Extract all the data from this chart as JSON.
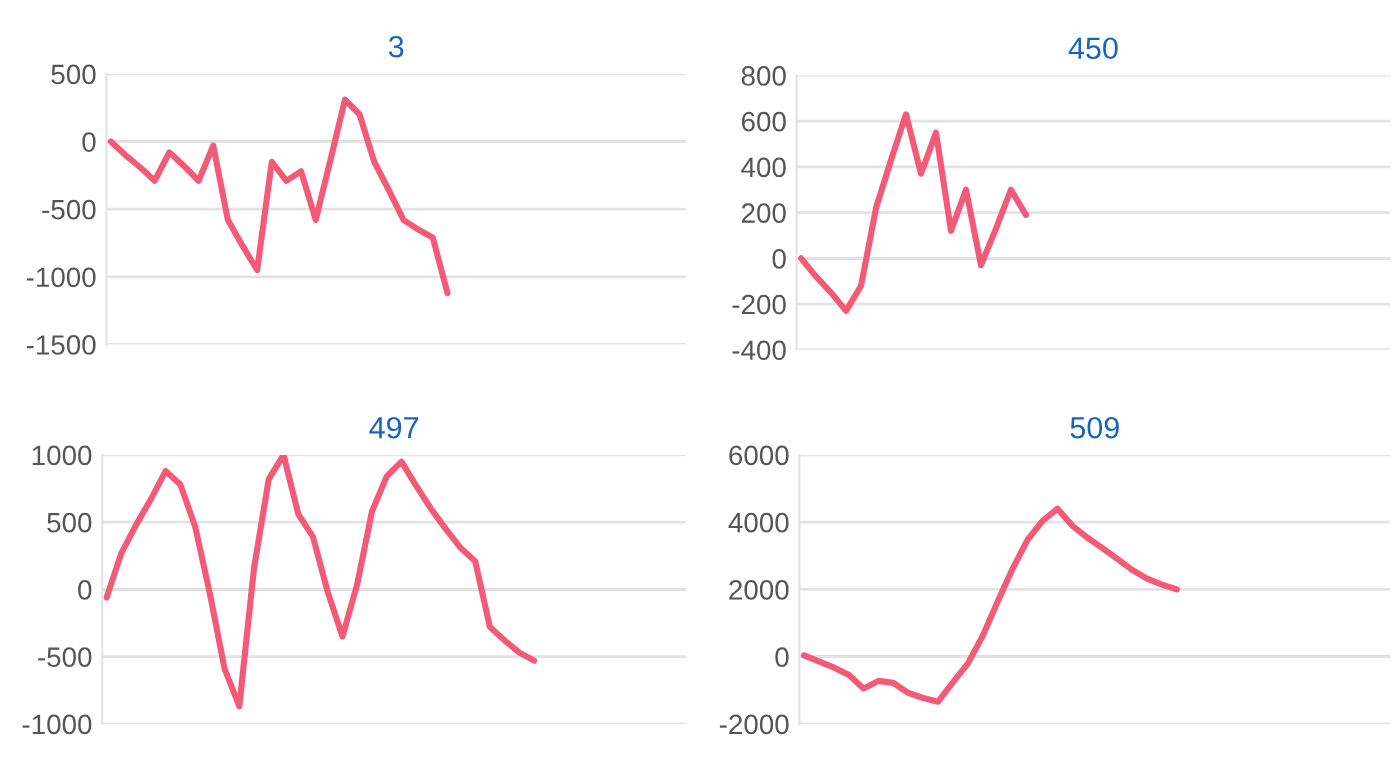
{
  "chart_data": [
    {
      "type": "line",
      "title": "3",
      "categories": [
        null,
        null,
        null,
        null,
        null,
        null,
        null,
        null,
        null,
        null,
        null,
        null,
        null,
        null,
        null,
        null,
        null,
        null,
        null,
        null,
        null,
        null,
        null,
        null,
        null,
        null,
        null,
        null,
        null,
        null,
        null,
        null,
        null,
        null,
        null,
        null,
        null,
        null,
        null,
        null
      ],
      "series": [
        {
          "color": "#f25a78",
          "values": [
            0,
            -100,
            -190,
            -290,
            -80,
            -180,
            -290,
            -30,
            -580,
            -770,
            -950,
            -150,
            -290,
            -220,
            -580,
            -140,
            310,
            200,
            -150,
            -360,
            -580,
            -650,
            -710,
            -1120,
            null,
            null,
            null,
            null,
            null,
            null,
            null,
            null,
            null,
            null,
            null,
            null,
            null,
            null,
            null,
            null
          ]
        }
      ],
      "ylim": [
        -1500,
        500
      ],
      "yticks": [
        -1500,
        -1000,
        -500,
        0,
        500
      ],
      "grid": "y",
      "tick_labels": "y",
      "marker": "none",
      "line_style": "solid"
    },
    {
      "type": "line",
      "title": "450",
      "categories": [
        null,
        null,
        null,
        null,
        null,
        null,
        null,
        null,
        null,
        null,
        null,
        null,
        null,
        null,
        null,
        null,
        null,
        null,
        null,
        null,
        null,
        null,
        null,
        null,
        null,
        null,
        null,
        null,
        null,
        null,
        null,
        null,
        null,
        null,
        null,
        null,
        null,
        null,
        null,
        null
      ],
      "series": [
        {
          "color": "#f25a78",
          "values": [
            0,
            -80,
            -150,
            -230,
            -120,
            220,
            430,
            630,
            370,
            550,
            120,
            300,
            -30,
            130,
            300,
            190,
            null,
            null,
            null,
            null,
            null,
            null,
            null,
            null,
            null,
            null,
            null,
            null,
            null,
            null,
            null,
            null,
            null,
            null,
            null,
            null,
            null,
            null,
            null,
            null
          ]
        }
      ],
      "ylim": [
        -400,
        800
      ],
      "yticks": [
        -400,
        -200,
        0,
        200,
        400,
        600,
        800
      ],
      "grid": "y",
      "tick_labels": "y",
      "marker": "none",
      "line_style": "solid"
    },
    {
      "type": "line",
      "title": "497",
      "categories": [
        null,
        null,
        null,
        null,
        null,
        null,
        null,
        null,
        null,
        null,
        null,
        null,
        null,
        null,
        null,
        null,
        null,
        null,
        null,
        null,
        null,
        null,
        null,
        null,
        null,
        null,
        null,
        null,
        null,
        null,
        null,
        null,
        null,
        null,
        null,
        null,
        null,
        null,
        null,
        null
      ],
      "series": [
        {
          "color": "#f25a78",
          "values": [
            -60,
            270,
            480,
            670,
            880,
            780,
            470,
            -30,
            -590,
            -870,
            160,
            820,
            1000,
            560,
            390,
            -20,
            -350,
            40,
            580,
            840,
            950,
            770,
            600,
            450,
            310,
            210,
            -280,
            -380,
            -470,
            -530,
            null,
            null,
            null,
            null,
            null,
            null,
            null,
            null,
            null,
            null
          ]
        }
      ],
      "ylim": [
        -1000,
        1000
      ],
      "yticks": [
        -1000,
        -500,
        0,
        500,
        1000
      ],
      "grid": "y",
      "tick_labels": "y",
      "marker": "none",
      "line_style": "solid"
    },
    {
      "type": "line",
      "title": "509",
      "categories": [
        null,
        null,
        null,
        null,
        null,
        null,
        null,
        null,
        null,
        null,
        null,
        null,
        null,
        null,
        null,
        null,
        null,
        null,
        null,
        null,
        null,
        null,
        null,
        null,
        null,
        null,
        null,
        null,
        null,
        null,
        null,
        null,
        null,
        null,
        null,
        null,
        null,
        null,
        null,
        null
      ],
      "series": [
        {
          "color": "#f25a78",
          "values": [
            40,
            -140,
            -320,
            -540,
            -950,
            -720,
            -780,
            -1080,
            -1230,
            -1340,
            -760,
            -200,
            630,
            1650,
            2620,
            3480,
            4040,
            4400,
            3890,
            3540,
            3230,
            2910,
            2580,
            2320,
            2140,
            2000,
            null,
            null,
            null,
            null,
            null,
            null,
            null,
            null,
            null,
            null,
            null,
            null,
            null,
            null
          ]
        }
      ],
      "ylim": [
        -2000,
        6000
      ],
      "yticks": [
        -2000,
        0,
        2000,
        4000,
        6000
      ],
      "grid": "y",
      "tick_labels": "y",
      "marker": "none",
      "line_style": "solid"
    }
  ]
}
